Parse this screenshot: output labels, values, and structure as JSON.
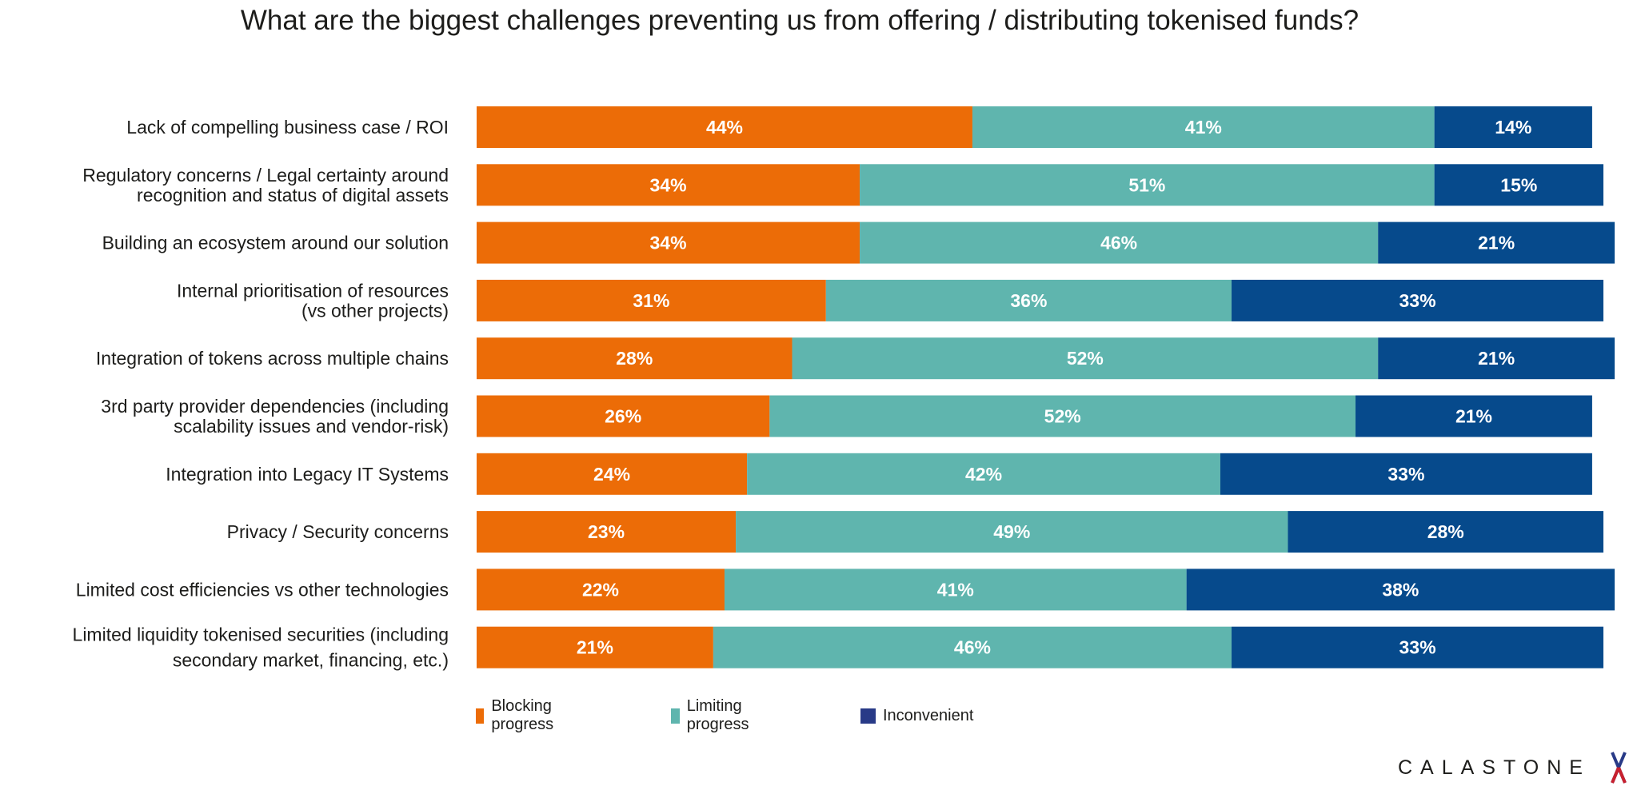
{
  "chart_data": {
    "type": "bar",
    "orientation": "horizontal",
    "stacked": true,
    "title": "What are the biggest challenges preventing us from offering / distributing tokenised funds?",
    "xlabel": "",
    "ylabel": "",
    "unit": "%",
    "xlim": [
      0,
      100
    ],
    "grid": false,
    "legend_position": "bottom",
    "categories": [
      [
        "Lack of compelling business case / ROI"
      ],
      [
        "Regulatory concerns / Legal certainty around",
        "recognition and status of digital assets"
      ],
      [
        "Building an ecosystem around our solution"
      ],
      [
        "Internal prioritisation of resources",
        "(vs other projects)"
      ],
      [
        "Integration of tokens across multiple chains"
      ],
      [
        "3rd party provider dependencies (including",
        "scalability issues and vendor-risk)"
      ],
      [
        "Integration into Legacy IT Systems"
      ],
      [
        "Privacy / Security concerns"
      ],
      [
        "Limited cost efficiencies vs other technologies"
      ],
      [
        "Limited liquidity tokenised securities (including",
        "secondary market, financing, etc.)"
      ]
    ],
    "series": [
      {
        "name": "Blocking progress",
        "color": "#EC6C07",
        "legend_color": "#EC6C07",
        "values": [
          44,
          34,
          34,
          31,
          28,
          26,
          24,
          23,
          22,
          21
        ]
      },
      {
        "name": "Limiting progress",
        "color": "#5FB5AE",
        "legend_color": "#5FB5AE",
        "values": [
          41,
          51,
          46,
          36,
          52,
          52,
          42,
          49,
          41,
          46
        ]
      },
      {
        "name": "Inconvenient",
        "color": "#064A8C",
        "legend_color": "#283A87",
        "values": [
          14,
          15,
          21,
          33,
          21,
          21,
          33,
          28,
          38,
          33
        ]
      }
    ]
  },
  "branding": {
    "logo_text": "CALASTONE",
    "logo_mark": "X"
  }
}
